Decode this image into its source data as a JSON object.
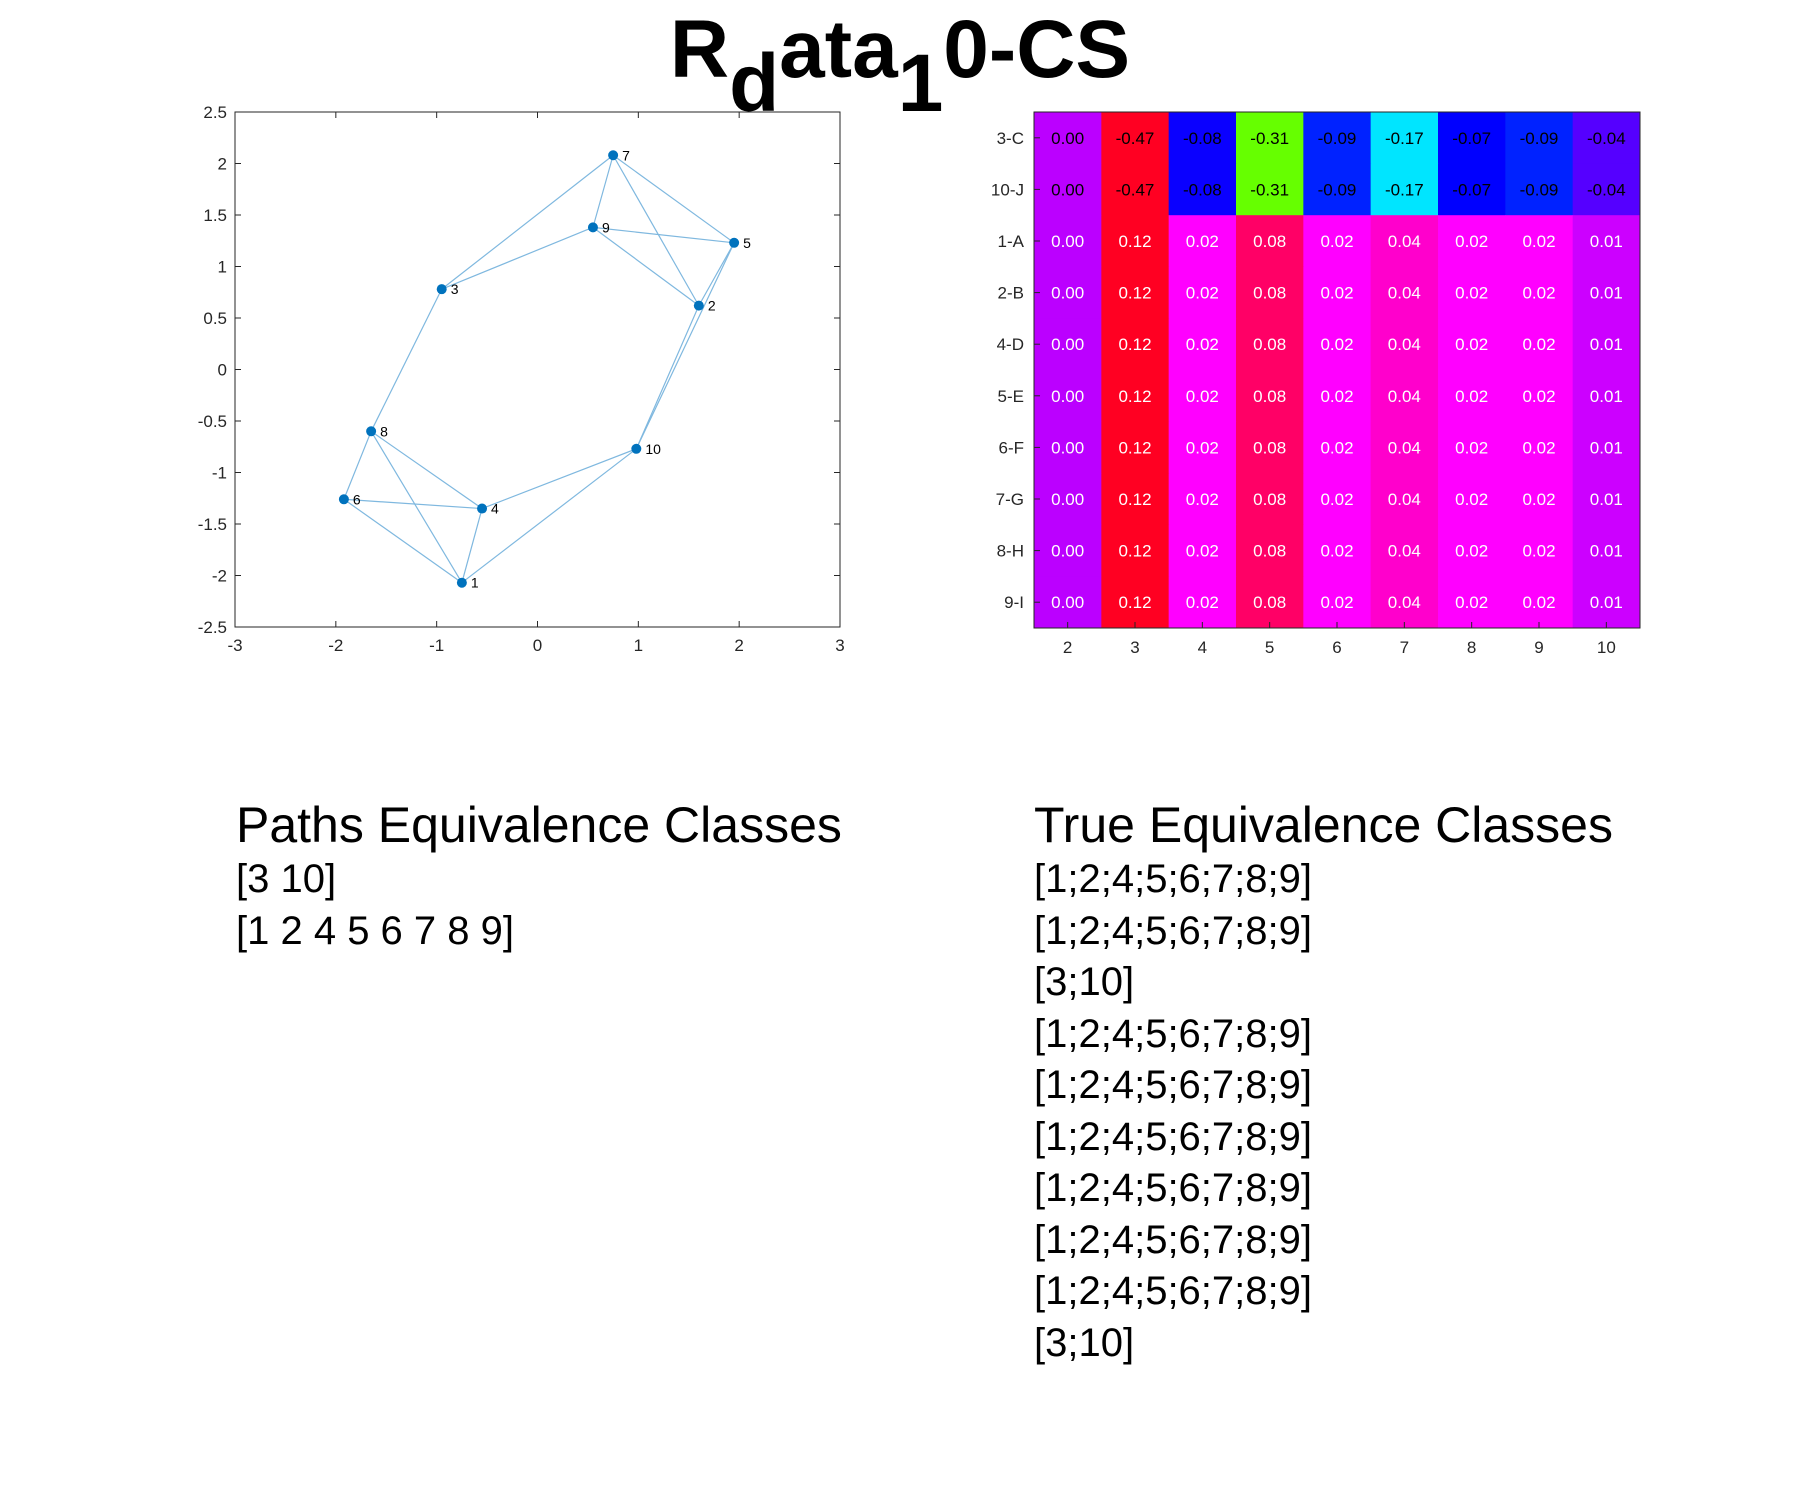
{
  "title": {
    "main": "R",
    "sub1": "d",
    "mid": "ata",
    "sub2": "1",
    "tail": "0-CS"
  },
  "paths_classes": {
    "heading": "Paths Equivalence Classes",
    "lines": [
      "[3 10]",
      "[1 2 4 5 6 7 8 9]"
    ]
  },
  "true_classes": {
    "heading": "True Equivalence Classes",
    "lines": [
      "[1;2;4;5;6;7;8;9]",
      "[1;2;4;5;6;7;8;9]",
      "[3;10]",
      "[1;2;4;5;6;7;8;9]",
      "[1;2;4;5;6;7;8;9]",
      "[1;2;4;5;6;7;8;9]",
      "[1;2;4;5;6;7;8;9]",
      "[1;2;4;5;6;7;8;9]",
      "[1;2;4;5;6;7;8;9]",
      "[3;10]"
    ]
  },
  "chart_data": [
    {
      "type": "scatter",
      "xlim": [
        -3,
        3
      ],
      "ylim": [
        -2.5,
        2.5
      ],
      "xticks": [
        "-3",
        "-2",
        "-1",
        "0",
        "1",
        "2",
        "3"
      ],
      "yticks": [
        "2.5",
        "2",
        "1.5",
        "1",
        "0.5",
        "0",
        "-0.5",
        "-1",
        "-1.5",
        "-2",
        "-2.5"
      ],
      "point_color": "#0072bd",
      "edge_color": "#7fb8df",
      "points": [
        {
          "label": "1",
          "x": -0.75,
          "y": -2.07
        },
        {
          "label": "2",
          "x": 1.6,
          "y": 0.62
        },
        {
          "label": "3",
          "x": -0.95,
          "y": 0.78
        },
        {
          "label": "4",
          "x": -0.55,
          "y": -1.35
        },
        {
          "label": "5",
          "x": 1.95,
          "y": 1.23
        },
        {
          "label": "6",
          "x": -1.92,
          "y": -1.26
        },
        {
          "label": "7",
          "x": 0.75,
          "y": 2.08
        },
        {
          "label": "8",
          "x": -1.65,
          "y": -0.6
        },
        {
          "label": "9",
          "x": 0.55,
          "y": 1.38
        },
        {
          "label": "10",
          "x": 0.98,
          "y": -0.77
        }
      ],
      "edges": [
        [
          "3",
          "7"
        ],
        [
          "3",
          "9"
        ],
        [
          "3",
          "8"
        ],
        [
          "9",
          "7"
        ],
        [
          "9",
          "5"
        ],
        [
          "9",
          "2"
        ],
        [
          "7",
          "5"
        ],
        [
          "7",
          "2"
        ],
        [
          "5",
          "2"
        ],
        [
          "5",
          "10"
        ],
        [
          "2",
          "10"
        ],
        [
          "10",
          "4"
        ],
        [
          "10",
          "1"
        ],
        [
          "8",
          "6"
        ],
        [
          "8",
          "4"
        ],
        [
          "8",
          "1"
        ],
        [
          "6",
          "4"
        ],
        [
          "6",
          "1"
        ],
        [
          "4",
          "1"
        ]
      ]
    },
    {
      "type": "heatmap",
      "columns": [
        "2",
        "3",
        "4",
        "5",
        "6",
        "7",
        "8",
        "9",
        "10"
      ],
      "rows": [
        "3-C",
        "10-J",
        "1-A",
        "2-B",
        "4-D",
        "5-E",
        "6-F",
        "7-G",
        "8-H",
        "9-I"
      ],
      "values": [
        [
          "0.00",
          "-0.47",
          "-0.08",
          "-0.31",
          "-0.09",
          "-0.17",
          "-0.07",
          "-0.09",
          "-0.04"
        ],
        [
          "0.00",
          "-0.47",
          "-0.08",
          "-0.31",
          "-0.09",
          "-0.17",
          "-0.07",
          "-0.09",
          "-0.04"
        ],
        [
          "0.00",
          "0.12",
          "0.02",
          "0.08",
          "0.02",
          "0.04",
          "0.02",
          "0.02",
          "0.01"
        ],
        [
          "0.00",
          "0.12",
          "0.02",
          "0.08",
          "0.02",
          "0.04",
          "0.02",
          "0.02",
          "0.01"
        ],
        [
          "0.00",
          "0.12",
          "0.02",
          "0.08",
          "0.02",
          "0.04",
          "0.02",
          "0.02",
          "0.01"
        ],
        [
          "0.00",
          "0.12",
          "0.02",
          "0.08",
          "0.02",
          "0.04",
          "0.02",
          "0.02",
          "0.01"
        ],
        [
          "0.00",
          "0.12",
          "0.02",
          "0.08",
          "0.02",
          "0.04",
          "0.02",
          "0.02",
          "0.01"
        ],
        [
          "0.00",
          "0.12",
          "0.02",
          "0.08",
          "0.02",
          "0.04",
          "0.02",
          "0.02",
          "0.01"
        ],
        [
          "0.00",
          "0.12",
          "0.02",
          "0.08",
          "0.02",
          "0.04",
          "0.02",
          "0.02",
          "0.01"
        ],
        [
          "0.00",
          "0.12",
          "0.02",
          "0.08",
          "0.02",
          "0.04",
          "0.02",
          "0.02",
          "0.01"
        ]
      ],
      "cell_colors": [
        [
          "#bb00ff",
          "#ff0022",
          "#0a00ff",
          "#66ff00",
          "#0022ff",
          "#00e5ff",
          "#0000ff",
          "#0022ff",
          "#5500ff"
        ],
        [
          "#bb00ff",
          "#ff0022",
          "#0a00ff",
          "#66ff00",
          "#0022ff",
          "#00e5ff",
          "#0000ff",
          "#0022ff",
          "#5500ff"
        ],
        [
          "#bb00ff",
          "#ff0022",
          "#ff00ff",
          "#ff0066",
          "#ff00ff",
          "#ff00cc",
          "#ff00ff",
          "#ff00ff",
          "#cc00ff"
        ],
        [
          "#bb00ff",
          "#ff0022",
          "#ff00ff",
          "#ff0066",
          "#ff00ff",
          "#ff00cc",
          "#ff00ff",
          "#ff00ff",
          "#cc00ff"
        ],
        [
          "#bb00ff",
          "#ff0022",
          "#ff00ff",
          "#ff0066",
          "#ff00ff",
          "#ff00cc",
          "#ff00ff",
          "#ff00ff",
          "#cc00ff"
        ],
        [
          "#bb00ff",
          "#ff0022",
          "#ff00ff",
          "#ff0066",
          "#ff00ff",
          "#ff00cc",
          "#ff00ff",
          "#ff00ff",
          "#cc00ff"
        ],
        [
          "#bb00ff",
          "#ff0022",
          "#ff00ff",
          "#ff0066",
          "#ff00ff",
          "#ff00cc",
          "#ff00ff",
          "#ff00ff",
          "#cc00ff"
        ],
        [
          "#bb00ff",
          "#ff0022",
          "#ff00ff",
          "#ff0066",
          "#ff00ff",
          "#ff00cc",
          "#ff00ff",
          "#ff00ff",
          "#cc00ff"
        ],
        [
          "#bb00ff",
          "#ff0022",
          "#ff00ff",
          "#ff0066",
          "#ff00ff",
          "#ff00cc",
          "#ff00ff",
          "#ff00ff",
          "#cc00ff"
        ],
        [
          "#bb00ff",
          "#ff0022",
          "#ff00ff",
          "#ff0066",
          "#ff00ff",
          "#ff00cc",
          "#ff00ff",
          "#ff00ff",
          "#cc00ff"
        ]
      ],
      "dark_text_rows": [
        "3-C",
        "10-J"
      ]
    }
  ]
}
